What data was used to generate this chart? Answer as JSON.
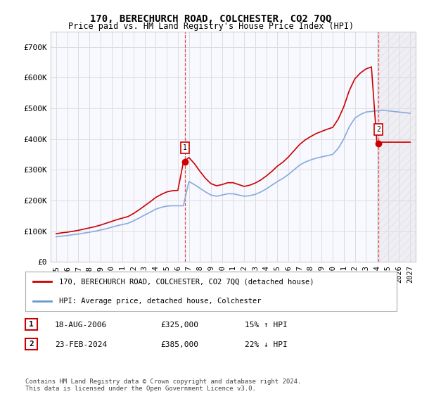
{
  "title": "170, BERECHURCH ROAD, COLCHESTER, CO2 7QQ",
  "subtitle": "Price paid vs. HM Land Registry's House Price Index (HPI)",
  "ylim": [
    0,
    750000
  ],
  "yticks": [
    0,
    100000,
    200000,
    300000,
    400000,
    500000,
    600000,
    700000
  ],
  "ytick_labels": [
    "£0",
    "£100K",
    "£200K",
    "£300K",
    "£400K",
    "£500K",
    "£600K",
    "£700K"
  ],
  "legend_line1": "170, BERECHURCH ROAD, COLCHESTER, CO2 7QQ (detached house)",
  "legend_line2": "HPI: Average price, detached house, Colchester",
  "legend_color1": "#cc0000",
  "legend_color2": "#6699cc",
  "footnote": "Contains HM Land Registry data © Crown copyright and database right 2024.\nThis data is licensed under the Open Government Licence v3.0.",
  "sale1_label": "1",
  "sale1_date": "18-AUG-2006",
  "sale1_price": "£325,000",
  "sale1_hpi": "15% ↑ HPI",
  "sale2_label": "2",
  "sale2_date": "23-FEB-2024",
  "sale2_price": "£385,000",
  "sale2_hpi": "22% ↓ HPI",
  "sale1_x": 2006.63,
  "sale1_y": 325000,
  "sale2_x": 2024.13,
  "sale2_y": 385000,
  "vline1_x": 2006.63,
  "vline2_x": 2024.13,
  "background_color": "#ffffff",
  "grid_color": "#dddddd",
  "plot_bg_color": "#f8f8ff",
  "hpi_line_color": "#88aadd",
  "price_line_color": "#cc0000",
  "hpi_years": [
    1995,
    1995.5,
    1996,
    1996.5,
    1997,
    1997.5,
    1998,
    1998.5,
    1999,
    1999.5,
    2000,
    2000.5,
    2001,
    2001.5,
    2002,
    2002.5,
    2003,
    2003.5,
    2004,
    2004.5,
    2005,
    2005.5,
    2006,
    2006.5,
    2007,
    2007.5,
    2008,
    2008.5,
    2009,
    2009.5,
    2010,
    2010.5,
    2011,
    2011.5,
    2012,
    2012.5,
    2013,
    2013.5,
    2014,
    2014.5,
    2015,
    2015.5,
    2016,
    2016.5,
    2017,
    2017.5,
    2018,
    2018.5,
    2019,
    2019.5,
    2020,
    2020.5,
    2021,
    2021.5,
    2022,
    2022.5,
    2023,
    2023.5,
    2024,
    2024.5,
    2025,
    2025.5,
    2026,
    2026.5,
    2027
  ],
  "hpi_values": [
    82000,
    84000,
    86000,
    89000,
    91000,
    94000,
    97000,
    100000,
    104000,
    108000,
    113000,
    118000,
    122000,
    126000,
    134000,
    143000,
    153000,
    162000,
    172000,
    178000,
    182000,
    183000,
    183000,
    183000,
    262000,
    252000,
    240000,
    228000,
    218000,
    214000,
    218000,
    222000,
    222000,
    218000,
    214000,
    216000,
    220000,
    228000,
    238000,
    250000,
    262000,
    272000,
    285000,
    300000,
    315000,
    325000,
    332000,
    338000,
    342000,
    346000,
    350000,
    370000,
    400000,
    440000,
    468000,
    480000,
    488000,
    490000,
    492000,
    494000,
    492000,
    490000,
    488000,
    486000,
    484000
  ],
  "price_years": [
    1995,
    1995.5,
    1996,
    1996.5,
    1997,
    1997.5,
    1998,
    1998.5,
    1999,
    1999.5,
    2000,
    2000.5,
    2001,
    2001.5,
    2002,
    2002.5,
    2003,
    2003.5,
    2004,
    2004.5,
    2005,
    2005.5,
    2006,
    2006.5,
    2007,
    2007.5,
    2008,
    2008.5,
    2009,
    2009.5,
    2010,
    2010.5,
    2011,
    2011.5,
    2012,
    2012.5,
    2013,
    2013.5,
    2014,
    2014.5,
    2015,
    2015.5,
    2016,
    2016.5,
    2017,
    2017.5,
    2018,
    2018.5,
    2019,
    2019.5,
    2020,
    2020.5,
    2021,
    2021.5,
    2022,
    2022.5,
    2023,
    2023.5,
    2024,
    2024.5,
    2025,
    2025.5,
    2026,
    2026.5,
    2027
  ],
  "price_values": [
    92000,
    95000,
    97000,
    100000,
    103000,
    107000,
    111000,
    115000,
    120000,
    126000,
    132000,
    138000,
    143000,
    148000,
    158000,
    170000,
    183000,
    196000,
    210000,
    220000,
    228000,
    232000,
    233000,
    325000,
    340000,
    320000,
    295000,
    272000,
    255000,
    248000,
    252000,
    258000,
    258000,
    252000,
    246000,
    250000,
    257000,
    267000,
    280000,
    295000,
    312000,
    325000,
    342000,
    362000,
    382000,
    397000,
    408000,
    418000,
    425000,
    432000,
    438000,
    465000,
    505000,
    558000,
    596000,
    615000,
    628000,
    635000,
    385000,
    390000,
    390000,
    390000,
    390000,
    390000,
    390000
  ],
  "xlim": [
    1994.5,
    2027.5
  ],
  "xticks": [
    1995,
    1996,
    1997,
    1998,
    1999,
    2000,
    2001,
    2002,
    2003,
    2004,
    2005,
    2006,
    2007,
    2008,
    2009,
    2010,
    2011,
    2012,
    2013,
    2014,
    2015,
    2016,
    2017,
    2018,
    2019,
    2020,
    2021,
    2022,
    2023,
    2024,
    2025,
    2026,
    2027
  ]
}
